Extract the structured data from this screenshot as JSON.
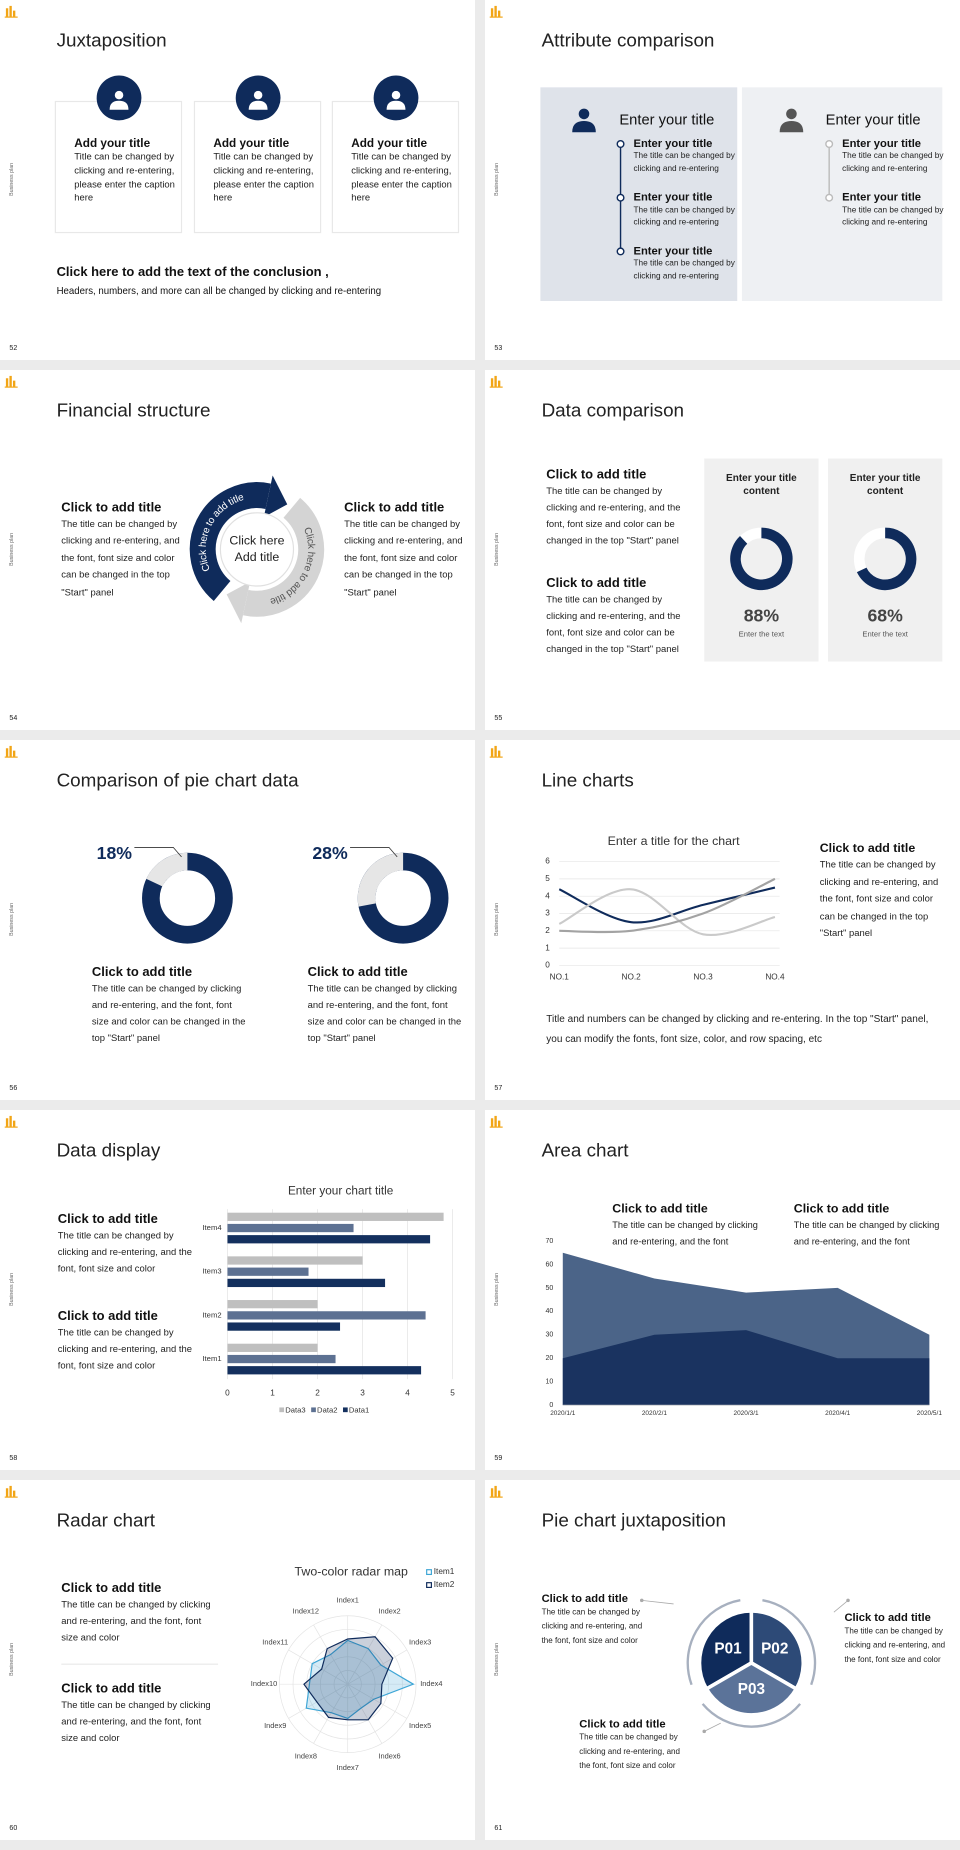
{
  "side_label": "Business plan",
  "slides": [
    {
      "page": 52,
      "title": "Juxtaposition",
      "cards": [
        {
          "title": "Add your title",
          "text": "Title can be changed by clicking and re-entering, please enter the caption here"
        },
        {
          "title": "Add your title",
          "text": "Title can be changed by clicking and re-entering, please enter the caption here"
        },
        {
          "title": "Add your title",
          "text": "Title can be changed by clicking and re-entering, please enter the caption here"
        }
      ],
      "conclusion": "Click here to add the text of the conclusion ,",
      "note": "Headers, numbers, and more can all be changed by clicking and re-entering"
    },
    {
      "page": 53,
      "title": "Attribute comparison",
      "panels": [
        {
          "title": "Enter your title",
          "items": [
            {
              "title": "Enter your title",
              "text": "The title can be changed by clicking and re-entering"
            },
            {
              "title": "Enter your title",
              "text": "The title can be changed by clicking and re-entering"
            },
            {
              "title": "Enter your title",
              "text": "The title can be changed by clicking and re-entering"
            }
          ]
        },
        {
          "title": "Enter your title",
          "items": [
            {
              "title": "Enter your title",
              "text": "The title can be changed by clicking and re-entering"
            },
            {
              "title": "Enter your title",
              "text": "The title can be changed by clicking and re-entering"
            }
          ]
        }
      ]
    },
    {
      "page": 54,
      "title": "Financial structure",
      "blocks": [
        {
          "title": "Click to add title",
          "text": "The title can be changed by clicking and re-entering, and the font, font size and color can be changed in the top \"Start\" panel"
        },
        {
          "title": "Click to add title",
          "text": "The title can be changed by clicking and re-entering, and the font, font size and color can be changed in the top \"Start\" panel"
        }
      ],
      "center": "Click here Add title",
      "arc_labels": [
        "Click here to add title",
        "Click here to add title"
      ]
    },
    {
      "page": 55,
      "title": "Data comparison",
      "blocks": [
        {
          "title": "Click to add title",
          "text": "The title can be changed by clicking and re-entering, and the font, font size and color can be changed in the top \"Start\" panel"
        },
        {
          "title": "Click to add title",
          "text": "The title can be changed by clicking and re-entering, and the font, font size and color can be changed in the top \"Start\" panel"
        }
      ],
      "panels": [
        {
          "title": "Enter your title content",
          "value": 88,
          "value_label": "88%",
          "caption": "Enter the text"
        },
        {
          "title": "Enter your title content",
          "value": 68,
          "value_label": "68%",
          "caption": "Enter the text"
        }
      ]
    },
    {
      "page": 56,
      "title": "Comparison of pie chart data",
      "donuts": [
        {
          "value": 18,
          "value_label": "18%",
          "title": "Click to add title",
          "text": "The title can be changed by clicking and re-entering, and the font, font size and color can be changed in the top \"Start\" panel"
        },
        {
          "value": 28,
          "value_label": "28%",
          "title": "Click to add title",
          "text": "The title can be changed by clicking and re-entering, and the font, font size and color can be changed in the top \"Start\" panel"
        }
      ]
    },
    {
      "page": 57,
      "title": "Line charts",
      "chart": {
        "type": "line",
        "title": "Enter a title for the chart",
        "categories": [
          "NO.1",
          "NO.2",
          "NO.3",
          "NO.4"
        ],
        "series": [
          {
            "color": "#0f2b5b",
            "values": [
              4.4,
              2.5,
              3.5,
              4.5
            ]
          },
          {
            "color": "#cacaca",
            "values": [
              2.4,
              4.4,
              1.8,
              2.8
            ]
          },
          {
            "color": "#a3a3a3",
            "values": [
              2,
              2,
              3,
              5
            ]
          }
        ],
        "ylim": [
          0,
          6
        ],
        "yticks": [
          0,
          1,
          2,
          3,
          4,
          5,
          6
        ],
        "grid": true
      },
      "side_title": "Click to add title",
      "side_text": "The title can be changed by clicking and re-entering, and the font, font size and color can be changed in the top \"Start\" panel",
      "footnote": "Title and numbers can be changed by clicking and re-entering. In the top \"Start\" panel, you can modify the fonts, font size, color, and row spacing, etc"
    },
    {
      "page": 58,
      "title": "Data display",
      "blocks": [
        {
          "title": "Click to add title",
          "text": "The title can be changed by clicking and re-entering, and the font, font size and color"
        },
        {
          "title": "Click to add title",
          "text": "The title can be changed by clicking and re-entering, and the font, font size and color"
        }
      ],
      "chart": {
        "type": "bar",
        "orientation": "horizontal",
        "title": "Enter your chart title",
        "categories": [
          "Item1",
          "Item2",
          "Item3",
          "Item4"
        ],
        "series": [
          {
            "name": "Data1",
            "color": "#14305e",
            "values": [
              4.3,
              2.5,
              3.5,
              4.5
            ]
          },
          {
            "name": "Data2",
            "color": "#5d7192",
            "values": [
              2.4,
              4.4,
              1.8,
              2.8
            ]
          },
          {
            "name": "Data3",
            "color": "#bfbfbf",
            "values": [
              2,
              2,
              3,
              4.8
            ]
          }
        ],
        "xlim": [
          0,
          5
        ],
        "xticks": [
          0,
          1,
          2,
          3,
          4,
          5
        ],
        "grid": true,
        "legend": "bottom"
      }
    },
    {
      "page": 59,
      "title": "Area chart",
      "blocks": [
        {
          "title": "Click to add title",
          "text": "The title can be changed by clicking and re-entering, and the font"
        },
        {
          "title": "Click to add title",
          "text": "The title can be changed by clicking and re-entering, and the font"
        }
      ],
      "chart": {
        "type": "area",
        "categories": [
          "2020/1/1",
          "2020/2/1",
          "2020/3/1",
          "2020/4/1",
          "2020/5/1"
        ],
        "series": [
          {
            "color": "#4b6488",
            "values": [
              65,
              54,
              48,
              50,
              30
            ]
          },
          {
            "color": "#1a3360",
            "values": [
              20,
              30,
              32,
              20,
              20
            ]
          }
        ],
        "ylim": [
          0,
          70
        ],
        "yticks": [
          0,
          10,
          20,
          30,
          40,
          50,
          60,
          70
        ],
        "grid": false
      }
    },
    {
      "page": 60,
      "title": "Radar chart",
      "blocks": [
        {
          "title": "Click to add title",
          "text": "The title can be changed by clicking and re-entering, and the font, font size and color"
        },
        {
          "title": "Click to add title",
          "text": "The title can be changed by clicking and re-entering, and the font, font size and color"
        }
      ],
      "chart": {
        "type": "radar",
        "title": "Two-color radar map",
        "categories": [
          "Index1",
          "Index2",
          "Index3",
          "Index4",
          "Index5",
          "Index6",
          "Index7",
          "Index8",
          "Index9",
          "Index10",
          "Index11",
          "Index12"
        ],
        "series": [
          {
            "name": "Item1",
            "color": "#3ea6d6",
            "values": [
              3.2,
              3.0,
              2.8,
              4.8,
              2.2,
              2.0,
              2.5,
              2.4,
              3.5,
              2.8,
              3.0,
              2.5
            ]
          },
          {
            "name": "Item2",
            "color": "#0f2b5b",
            "values": [
              3.3,
              4.0,
              3.8,
              2.5,
              2.8,
              3.0,
              2.6,
              2.8,
              2.6,
              3.2,
              2.2,
              3.0
            ]
          }
        ],
        "rlim": [
          0,
          5
        ],
        "legend": "top-right"
      }
    },
    {
      "page": 61,
      "title": "Pie chart juxtaposition",
      "segments": [
        "P01",
        "P02",
        "P03"
      ],
      "blocks": [
        {
          "title": "Click to add title",
          "text": "The title can be changed by clicking and re-entering, and the font, font size and color"
        },
        {
          "title": "Click to add title",
          "text": "The title can be changed by clicking and re-entering, and the font, font size and color"
        },
        {
          "title": "Click to add title",
          "text": "The title can be changed by clicking and re-entering, and the font, font size and color"
        }
      ]
    }
  ]
}
